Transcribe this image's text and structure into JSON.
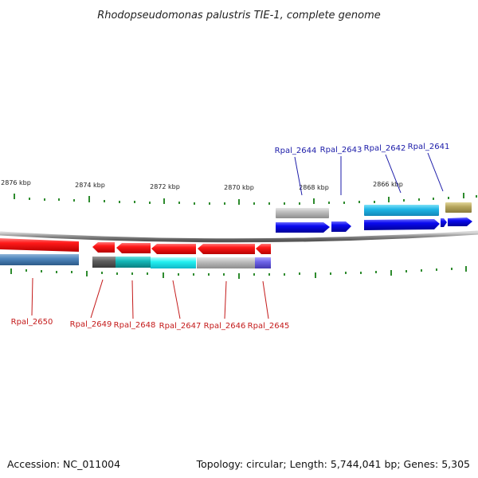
{
  "title": "Rhodopseudomonas palustris TIE-1, complete genome",
  "footer": {
    "accession": "Accession: NC_011004",
    "summary": "Topology: circular; Length: 5,744,041 bp; Genes: 5,305"
  },
  "colors": {
    "forward_gene": "#0000ee",
    "reverse_gene": "#ee0000",
    "top_label": "#1a1aa8",
    "bottom_label": "#c41a1a",
    "tick": "#2e8b2e"
  },
  "scale": {
    "unit": "kbp",
    "labels": [
      "2876 kbp",
      "2874 kbp",
      "2872 kbp",
      "2870 kbp",
      "2868 kbp",
      "2866 kbp"
    ]
  },
  "genes_top": [
    "Rpal_2644",
    "Rpal_2643",
    "Rpal_2642",
    "Rpal_2641"
  ],
  "genes_bottom": [
    "Rpal_2650",
    "Rpal_2649",
    "Rpal_2648",
    "Rpal_2647",
    "Rpal_2646",
    "Rpal_2645"
  ]
}
